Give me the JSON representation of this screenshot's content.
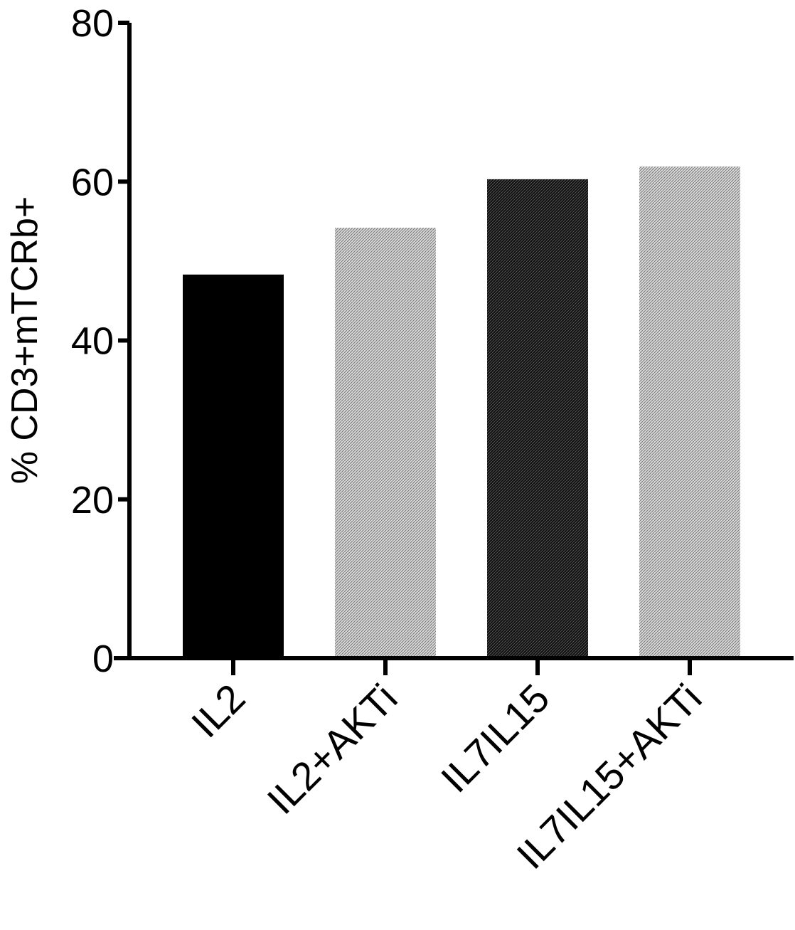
{
  "chart_data": {
    "type": "bar",
    "title": "",
    "xlabel": "",
    "ylabel": "% CD3+mTCRb+",
    "ylim": [
      0,
      80
    ],
    "yticks": [
      0,
      20,
      40,
      60,
      80
    ],
    "grid": false,
    "legend": "none",
    "categories": [
      "IL2",
      "IL2+AKTi",
      "IL7IL15",
      "IL7IL15+AKTi"
    ],
    "values": [
      48.3,
      54.2,
      60.3,
      61.9
    ],
    "fills": [
      "solid-black",
      "light-hatch",
      "dark-hatch",
      "light-hatch"
    ],
    "colors": {
      "axis": "#000000",
      "solid": "#000000",
      "dark_hatch": "#1a1a1a",
      "light_hatch": "#b0b0b0"
    }
  }
}
